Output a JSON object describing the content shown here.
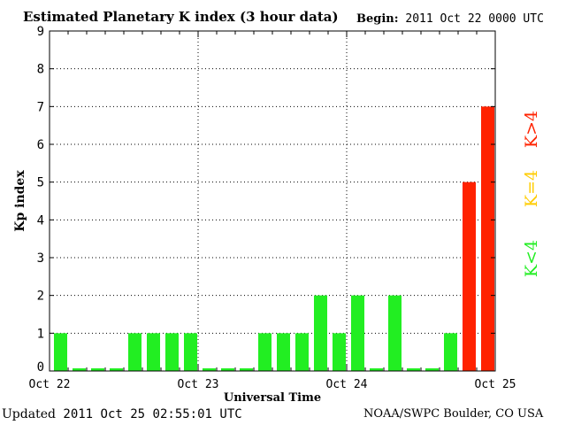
{
  "header": {
    "title": "Estimated Planetary K index (3 hour data)",
    "begin_label": "Begin:",
    "begin_value": "2011 Oct 22 0000 UTC"
  },
  "footer": {
    "updated_label": "Updated",
    "updated_value": "2011 Oct 25 02:55:01 UTC",
    "source": "NOAA/SWPC Boulder, CO USA"
  },
  "legend": {
    "low": "K<4",
    "mid": "K=4",
    "high": "K>4"
  },
  "colors": {
    "low": "#22ee22",
    "mid": "#ffcc00",
    "high": "#ff2200"
  },
  "chart_data": {
    "type": "bar",
    "title": "Estimated Planetary K index (3 hour data)",
    "xlabel": "Universal Time",
    "ylabel": "Kp index",
    "ylim": [
      0,
      9
    ],
    "yticks": [
      0,
      1,
      2,
      3,
      4,
      5,
      6,
      7,
      8,
      9
    ],
    "xtick_labels": [
      "Oct 22",
      "Oct 23",
      "Oct 24",
      "Oct 25"
    ],
    "grid": true,
    "bins_per_day": 8,
    "values": [
      1,
      0,
      0,
      0,
      1,
      1,
      1,
      1,
      0,
      0,
      0,
      1,
      1,
      1,
      2,
      1,
      2,
      0,
      2,
      0,
      0,
      1,
      5,
      7
    ]
  }
}
